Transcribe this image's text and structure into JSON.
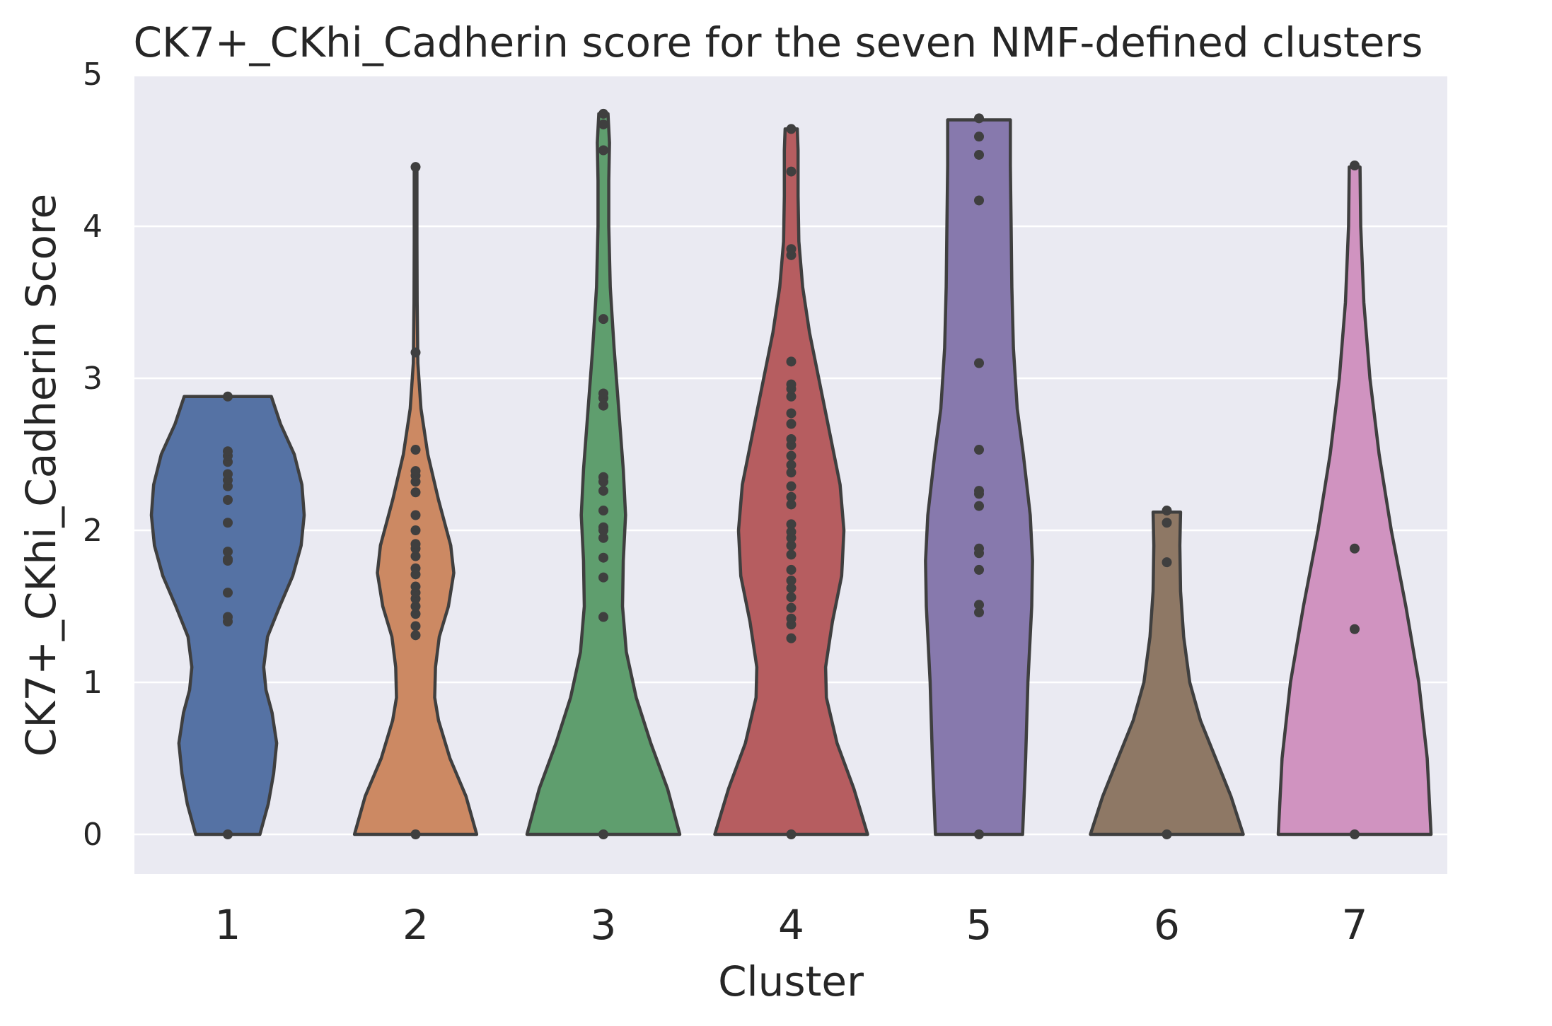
{
  "chart_data": {
    "type": "violin",
    "title": "CK7+_CKhi_Cadherin score for the seven NMF-defined clusters",
    "xlabel": "Cluster",
    "ylabel": "CK7+_CKhi_Cadherin Score",
    "categories": [
      "1",
      "2",
      "3",
      "4",
      "5",
      "6",
      "7"
    ],
    "yticks": [
      "0",
      "1",
      "2",
      "3",
      "4",
      "5"
    ],
    "ylim": [
      -0.26,
      5.05
    ],
    "grid": true,
    "background_color": "#eaeaf2",
    "outline_color": "#3f3f3f",
    "series": [
      {
        "category": "1",
        "color": "#5572a4",
        "profile": [
          [
            0,
            0.42
          ],
          [
            0.2,
            0.53
          ],
          [
            0.4,
            0.6
          ],
          [
            0.6,
            0.64
          ],
          [
            0.8,
            0.58
          ],
          [
            0.95,
            0.5
          ],
          [
            1.1,
            0.47
          ],
          [
            1.3,
            0.52
          ],
          [
            1.5,
            0.68
          ],
          [
            1.7,
            0.85
          ],
          [
            1.9,
            0.96
          ],
          [
            2.1,
            1.0
          ],
          [
            2.3,
            0.97
          ],
          [
            2.5,
            0.87
          ],
          [
            2.7,
            0.69
          ],
          [
            2.88,
            0.57
          ]
        ],
        "points": [
          0,
          1.4,
          1.43,
          1.59,
          1.8,
          1.81,
          1.86,
          2.05,
          2.2,
          2.29,
          2.33,
          2.37,
          2.45,
          2.49,
          2.52,
          2.88
        ]
      },
      {
        "category": "2",
        "color": "#cc8963",
        "profile": [
          [
            0,
            0.8
          ],
          [
            0.25,
            0.66
          ],
          [
            0.5,
            0.45
          ],
          [
            0.75,
            0.3
          ],
          [
            0.9,
            0.25
          ],
          [
            1.1,
            0.26
          ],
          [
            1.3,
            0.31
          ],
          [
            1.5,
            0.43
          ],
          [
            1.72,
            0.5
          ],
          [
            1.9,
            0.46
          ],
          [
            2.2,
            0.3
          ],
          [
            2.5,
            0.16
          ],
          [
            2.8,
            0.07
          ],
          [
            3.1,
            0.03
          ],
          [
            3.5,
            0.02
          ],
          [
            3.9,
            0.018
          ],
          [
            4.39,
            0.018
          ]
        ],
        "points": [
          0,
          1.31,
          1.37,
          1.45,
          1.5,
          1.55,
          1.59,
          1.63,
          1.71,
          1.75,
          1.83,
          1.88,
          1.91,
          2.0,
          2.1,
          2.25,
          2.32,
          2.36,
          2.39,
          2.53,
          3.17,
          4.39
        ]
      },
      {
        "category": "3",
        "color": "#5f9e6e",
        "profile": [
          [
            0,
            1.0
          ],
          [
            0.3,
            0.84
          ],
          [
            0.6,
            0.62
          ],
          [
            0.9,
            0.43
          ],
          [
            1.2,
            0.3
          ],
          [
            1.5,
            0.25
          ],
          [
            1.8,
            0.26
          ],
          [
            2.1,
            0.29
          ],
          [
            2.4,
            0.26
          ],
          [
            2.8,
            0.2
          ],
          [
            3.2,
            0.14
          ],
          [
            3.6,
            0.09
          ],
          [
            4.0,
            0.07
          ],
          [
            4.3,
            0.07
          ],
          [
            4.55,
            0.08
          ],
          [
            4.74,
            0.06
          ]
        ],
        "points": [
          0,
          1.43,
          1.69,
          1.82,
          1.95,
          2.0,
          2.02,
          2.13,
          2.26,
          2.32,
          2.35,
          2.82,
          2.87,
          2.9,
          3.39,
          4.5,
          4.67,
          4.74
        ]
      },
      {
        "category": "4",
        "color": "#b65d60",
        "profile": [
          [
            0,
            1.0
          ],
          [
            0.3,
            0.82
          ],
          [
            0.6,
            0.6
          ],
          [
            0.9,
            0.46
          ],
          [
            1.1,
            0.45
          ],
          [
            1.4,
            0.54
          ],
          [
            1.7,
            0.66
          ],
          [
            2.0,
            0.69
          ],
          [
            2.3,
            0.64
          ],
          [
            2.6,
            0.52
          ],
          [
            3.0,
            0.36
          ],
          [
            3.3,
            0.24
          ],
          [
            3.6,
            0.15
          ],
          [
            3.9,
            0.1
          ],
          [
            4.2,
            0.09
          ],
          [
            4.5,
            0.09
          ],
          [
            4.64,
            0.08
          ]
        ],
        "points": [
          0,
          1.29,
          1.38,
          1.42,
          1.49,
          1.56,
          1.62,
          1.67,
          1.74,
          1.84,
          1.9,
          1.95,
          1.99,
          2.04,
          2.17,
          2.22,
          2.29,
          2.38,
          2.43,
          2.49,
          2.56,
          2.6,
          2.7,
          2.77,
          2.88,
          2.93,
          2.96,
          3.11,
          3.81,
          3.85,
          4.36,
          4.64
        ]
      },
      {
        "category": "5",
        "color": "#8779ad",
        "profile": [
          [
            0,
            0.57
          ],
          [
            0.5,
            0.61
          ],
          [
            1.0,
            0.64
          ],
          [
            1.5,
            0.69
          ],
          [
            1.8,
            0.7
          ],
          [
            2.1,
            0.67
          ],
          [
            2.5,
            0.58
          ],
          [
            2.8,
            0.5
          ],
          [
            3.2,
            0.45
          ],
          [
            3.6,
            0.43
          ],
          [
            4.0,
            0.42
          ],
          [
            4.4,
            0.41
          ],
          [
            4.7,
            0.41
          ]
        ],
        "points": [
          0,
          1.46,
          1.51,
          1.74,
          1.85,
          1.88,
          2.16,
          2.24,
          2.26,
          2.53,
          3.1,
          4.17,
          4.47,
          4.59,
          4.71
        ]
      },
      {
        "category": "6",
        "color": "#8e7865",
        "profile": [
          [
            0,
            1.0
          ],
          [
            0.25,
            0.84
          ],
          [
            0.5,
            0.64
          ],
          [
            0.75,
            0.44
          ],
          [
            1.0,
            0.3
          ],
          [
            1.3,
            0.22
          ],
          [
            1.6,
            0.18
          ],
          [
            1.9,
            0.17
          ],
          [
            2.12,
            0.18
          ]
        ],
        "points": [
          0,
          1.79,
          2.05,
          2.13
        ]
      },
      {
        "category": "7",
        "color": "#d093c0",
        "profile": [
          [
            0,
            1.0
          ],
          [
            0.5,
            0.95
          ],
          [
            1.0,
            0.84
          ],
          [
            1.5,
            0.67
          ],
          [
            2.0,
            0.48
          ],
          [
            2.5,
            0.32
          ],
          [
            3.0,
            0.2
          ],
          [
            3.5,
            0.12
          ],
          [
            4.0,
            0.08
          ],
          [
            4.39,
            0.07
          ]
        ],
        "points": [
          0,
          1.35,
          1.88,
          4.4
        ]
      }
    ]
  }
}
